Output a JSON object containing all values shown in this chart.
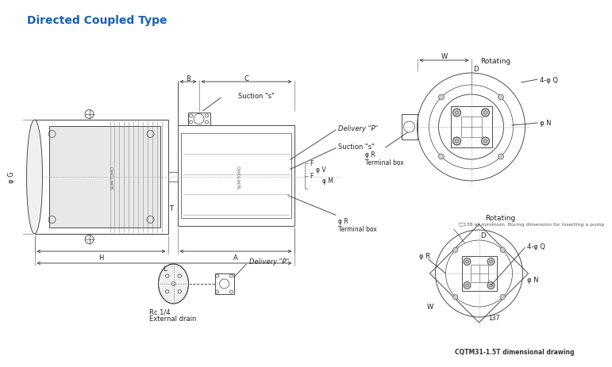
{
  "title": "Directed Coupled Type",
  "title_color": "#1a5fb4",
  "bg_color": "#ffffff",
  "line_color": "#404040",
  "text_color": "#222222",
  "footer_text": "CQTM31-1.5T dimensional drawing",
  "suction_top_label": "Suction \"s\"",
  "suction_side_label": "Suction \"s\"",
  "delivery_label": "Delivery \"P\"",
  "terminal_label": "φ R\nTerminal box",
  "rc_label": "Rc 1/4\nExternal drain",
  "rotating_label": "Rotating",
  "boring_note": "□138 at minimum. Boring dimension for inserting a pump"
}
